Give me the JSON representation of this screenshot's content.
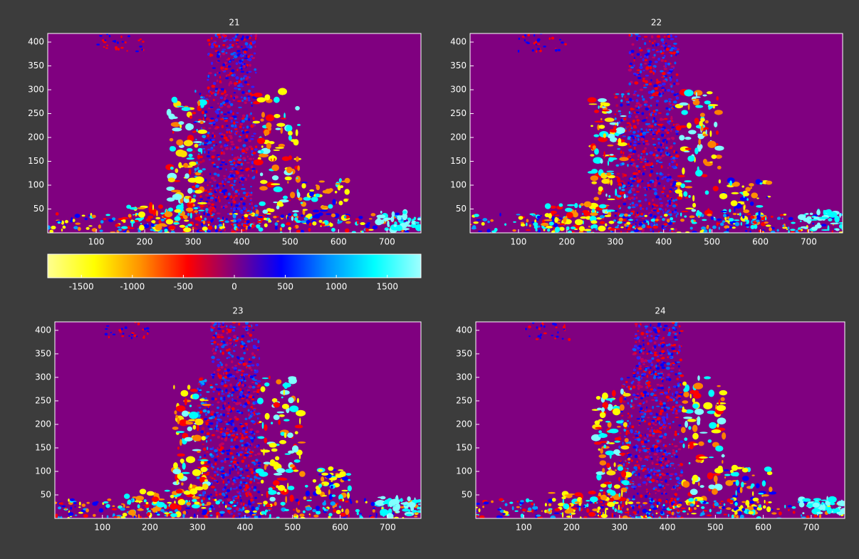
{
  "chart_data": [
    {
      "type": "heatmap",
      "title": "21",
      "xlim": [
        0,
        770
      ],
      "ylim": [
        0,
        418
      ],
      "xticks": [
        100,
        200,
        300,
        400,
        500,
        600,
        700
      ],
      "yticks": [
        50,
        100,
        150,
        200,
        250,
        300,
        350,
        400
      ],
      "background": "#800080"
    },
    {
      "type": "heatmap",
      "title": "22",
      "xlim": [
        0,
        770
      ],
      "ylim": [
        0,
        418
      ],
      "xticks": [
        100,
        200,
        300,
        400,
        500,
        600,
        700
      ],
      "yticks": [
        50,
        100,
        150,
        200,
        250,
        300,
        350,
        400
      ],
      "background": "#800080"
    },
    {
      "type": "heatmap",
      "title": "23",
      "xlim": [
        0,
        770
      ],
      "ylim": [
        0,
        418
      ],
      "xticks": [
        100,
        200,
        300,
        400,
        500,
        600,
        700
      ],
      "yticks": [
        50,
        100,
        150,
        200,
        250,
        300,
        350,
        400
      ],
      "background": "#800080"
    },
    {
      "type": "heatmap",
      "title": "24",
      "xlim": [
        0,
        770
      ],
      "ylim": [
        0,
        418
      ],
      "xticks": [
        100,
        200,
        300,
        400,
        500,
        600,
        700
      ],
      "yticks": [
        50,
        100,
        150,
        200,
        250,
        300,
        350,
        400
      ],
      "background": "#800080"
    },
    {
      "type": "colorbar",
      "clim": [
        -1830,
        1830
      ],
      "ticks": [
        -1500,
        -1000,
        -500,
        0,
        500,
        1000,
        1500
      ],
      "colors": [
        "#ffff90",
        "#ffff00",
        "#ff9000",
        "#ff0000",
        "#800080",
        "#0000ff",
        "#0090ff",
        "#00ffff",
        "#a0ffff"
      ]
    }
  ]
}
